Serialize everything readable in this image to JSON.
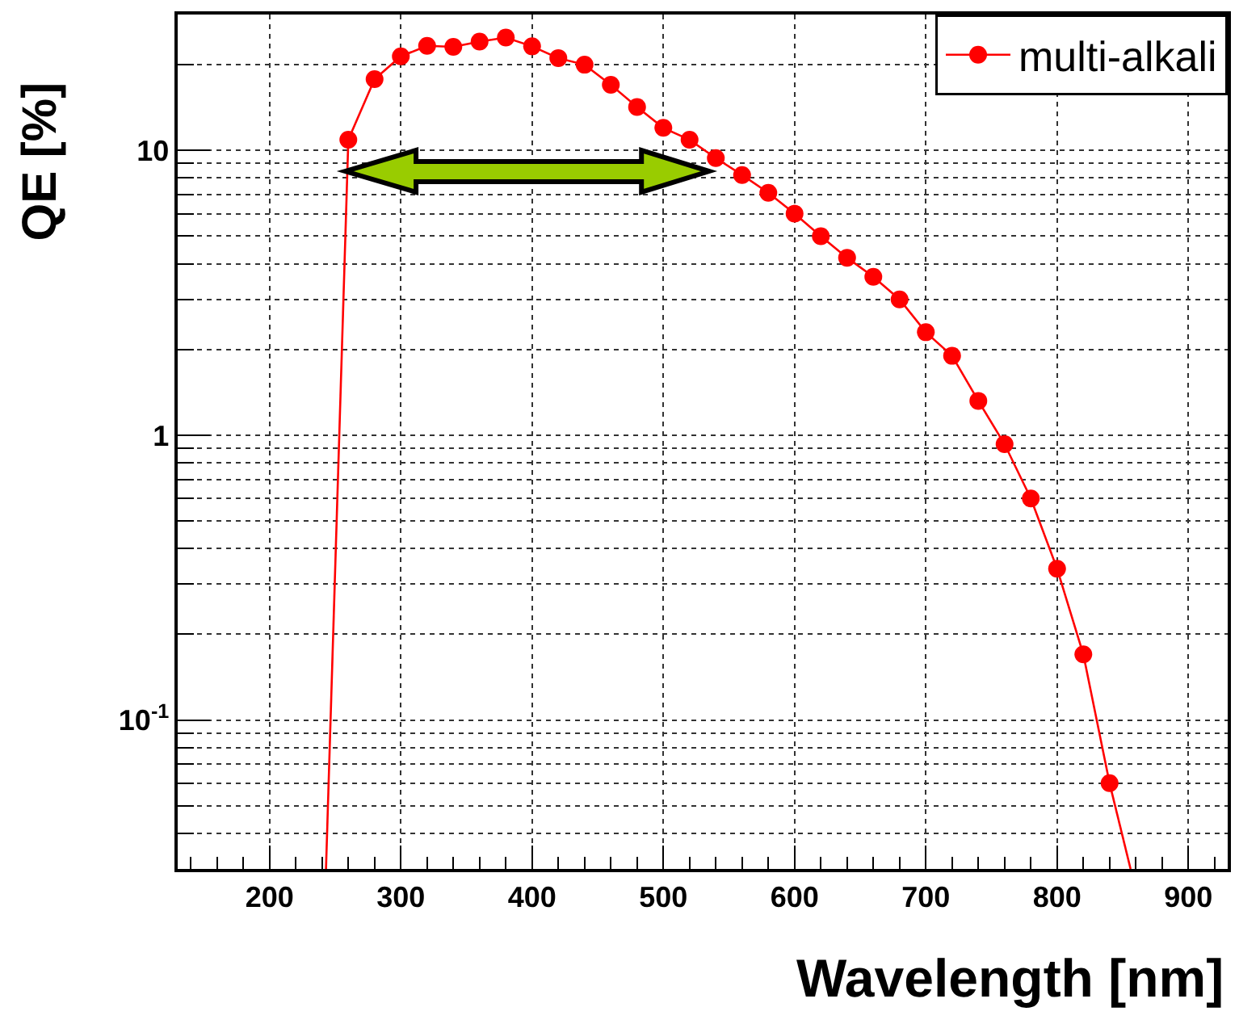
{
  "chart_data": {
    "type": "line",
    "xlabel": "Wavelength [nm]",
    "ylabel": "QE [%]",
    "series": [
      {
        "name": "multi-alkali",
        "color": "#ff0000",
        "marker": "circle",
        "x": [
          260,
          280,
          300,
          320,
          340,
          360,
          380,
          400,
          420,
          440,
          460,
          480,
          500,
          520,
          540,
          560,
          580,
          600,
          620,
          640,
          660,
          680,
          700,
          720,
          740,
          760,
          780,
          800,
          820,
          840
        ],
        "values": [
          10.9,
          17.8,
          21.4,
          23.3,
          23.1,
          24.1,
          24.9,
          23.2,
          21.1,
          20.0,
          17.0,
          14.2,
          12.0,
          10.9,
          9.4,
          8.2,
          7.1,
          6.0,
          5.0,
          4.2,
          3.6,
          3.0,
          2.3,
          1.9,
          1.32,
          0.93,
          0.6,
          0.34,
          0.17,
          0.06
        ]
      },
      {
        "color": "#ff0000",
        "marker": "none",
        "x": [
          243,
          260
        ],
        "values": [
          0.03,
          10.9
        ]
      },
      {
        "color": "#ff0000",
        "marker": "none",
        "x": [
          840,
          856
        ],
        "values": [
          0.06,
          0.03
        ]
      }
    ],
    "log": "y",
    "xlim": [
      130,
      930
    ],
    "ylim": [
      0.03,
      30
    ],
    "xticks": [
      200,
      300,
      400,
      500,
      600,
      700,
      800,
      900
    ],
    "yticks": [
      {
        "value": 0.1,
        "label": "10$^{-1}$"
      },
      1,
      10
    ],
    "grid": true,
    "legend": "top right",
    "line_style": "solid"
  }
}
